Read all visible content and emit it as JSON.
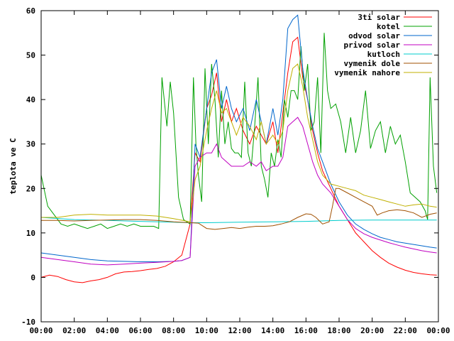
{
  "chart_data": {
    "type": "line",
    "title": "",
    "xlabel": "",
    "ylabel": "teplota ve C",
    "ylim": [
      -10,
      60
    ],
    "xlim_hours": [
      0,
      24
    ],
    "x_tick_labels": [
      "00:00",
      "02:00",
      "04:00",
      "06:00",
      "08:00",
      "10:00",
      "12:00",
      "14:00",
      "16:00",
      "18:00",
      "20:00",
      "22:00",
      "00:00"
    ],
    "y_tick_labels": [
      "-10",
      "0",
      "10",
      "20",
      "30",
      "40",
      "50",
      "60"
    ],
    "grid": false,
    "legend_position": "top-right",
    "series": [
      {
        "name": "3ti solar",
        "color": "#ff0000",
        "x": [
          0,
          0.5,
          1,
          1.5,
          2,
          2.5,
          3,
          3.5,
          4,
          4.5,
          5,
          5.5,
          6,
          6.5,
          7,
          7.5,
          8,
          8.5,
          9,
          9.3,
          9.6,
          10,
          10.3,
          10.6,
          10.9,
          11.2,
          11.5,
          11.8,
          12.2,
          12.6,
          13,
          13.3,
          13.6,
          14,
          14.3,
          14.6,
          14.9,
          15.2,
          15.5,
          15.8,
          16.1,
          16.4,
          16.7,
          17,
          17.5,
          18,
          18.5,
          19,
          19.5,
          20,
          20.5,
          21,
          21.5,
          22,
          22.5,
          23,
          23.5,
          23.9
        ],
        "y": [
          0,
          0.5,
          0.2,
          -0.5,
          -1,
          -1.2,
          -0.8,
          -0.5,
          0,
          0.8,
          1.2,
          1.3,
          1.5,
          1.8,
          2,
          2.5,
          3.5,
          5,
          12,
          28,
          26,
          38,
          41,
          46,
          35,
          40,
          35,
          38,
          33,
          30,
          34,
          32,
          30,
          35,
          28,
          37,
          46,
          53,
          54,
          45,
          40,
          33,
          28,
          24,
          20,
          16,
          13,
          10,
          8,
          6,
          4.5,
          3.2,
          2.3,
          1.6,
          1.1,
          0.8,
          0.6,
          0.5
        ]
      },
      {
        "name": "kotel",
        "color": "#00a000",
        "x": [
          0,
          0.4,
          0.8,
          1.2,
          1.6,
          2,
          2.4,
          2.8,
          3.2,
          3.6,
          4,
          4.4,
          4.8,
          5.2,
          5.6,
          6,
          6.4,
          6.8,
          7.1,
          7.3,
          7.6,
          7.8,
          8.0,
          8.3,
          8.6,
          9.0,
          9.2,
          9.35,
          9.5,
          9.7,
          9.9,
          10.1,
          10.3,
          10.5,
          10.7,
          10.9,
          11.1,
          11.3,
          11.5,
          11.7,
          11.9,
          12.1,
          12.3,
          12.5,
          12.7,
          12.9,
          13.1,
          13.3,
          13.5,
          13.7,
          13.9,
          14.1,
          14.3,
          14.5,
          14.7,
          14.9,
          15.1,
          15.3,
          15.5,
          15.7,
          15.9,
          16.1,
          16.3,
          16.5,
          16.7,
          16.9,
          17.1,
          17.3,
          17.5,
          17.8,
          18.1,
          18.4,
          18.7,
          19.0,
          19.3,
          19.6,
          19.9,
          20.2,
          20.5,
          20.8,
          21.1,
          21.4,
          21.7,
          22.0,
          22.3,
          22.6,
          22.9,
          23.2,
          23.35,
          23.5,
          23.7,
          23.9
        ],
        "y": [
          23,
          16,
          14,
          12,
          11.5,
          12,
          11.5,
          11,
          11.5,
          12,
          11,
          11.5,
          12,
          11.5,
          12,
          11.5,
          11.5,
          11.5,
          11,
          45,
          34,
          44,
          37,
          18,
          13,
          12,
          45,
          30,
          23,
          17,
          47,
          30,
          48,
          40,
          27,
          42,
          30,
          35,
          29,
          28,
          28,
          27,
          44,
          28,
          25,
          34,
          45,
          25,
          22,
          18,
          28,
          25,
          31,
          27,
          40,
          36,
          42,
          42,
          40,
          52,
          42,
          48,
          33,
          35,
          45,
          28,
          55,
          42,
          38,
          39,
          35,
          28,
          36,
          28,
          33,
          42,
          29,
          33,
          35,
          28,
          34,
          30,
          32,
          26,
          19,
          18,
          17,
          15,
          13,
          45,
          25,
          19
        ]
      },
      {
        "name": "odvod solar",
        "color": "#0066cc",
        "x": [
          0,
          1,
          2,
          3,
          4,
          5,
          6,
          7,
          8,
          8.5,
          9,
          9.3,
          9.6,
          10,
          10.3,
          10.6,
          10.9,
          11.2,
          11.5,
          11.8,
          12.2,
          12.6,
          13,
          13.3,
          13.6,
          14,
          14.3,
          14.6,
          14.9,
          15.2,
          15.5,
          15.8,
          16.1,
          16.4,
          16.7,
          17,
          17.5,
          18,
          18.5,
          19,
          19.5,
          20,
          20.5,
          21,
          21.5,
          22,
          22.5,
          23,
          23.5,
          23.9
        ],
        "y": [
          5.5,
          5,
          4.5,
          4,
          3.7,
          3.6,
          3.5,
          3.5,
          3.6,
          3.8,
          4.5,
          30,
          27,
          38,
          46,
          49,
          38,
          43,
          38,
          35,
          38,
          33,
          40,
          35,
          30,
          38,
          32,
          40,
          56,
          58,
          59,
          47,
          40,
          34,
          29,
          26,
          21,
          17,
          14,
          12,
          10.8,
          9.8,
          9,
          8.5,
          8,
          7.7,
          7.4,
          7.1,
          6.8,
          6.6
        ]
      },
      {
        "name": "privod solar",
        "color": "#c000c0",
        "x": [
          0,
          1,
          2,
          3,
          4,
          5,
          6,
          7,
          8,
          8.5,
          9,
          9.3,
          9.6,
          10,
          10.3,
          10.6,
          10.9,
          11.2,
          11.5,
          11.8,
          12.2,
          12.6,
          13,
          13.3,
          13.6,
          14,
          14.3,
          14.6,
          14.9,
          15.2,
          15.5,
          15.8,
          16.1,
          16.4,
          16.7,
          17,
          17.5,
          18,
          18.5,
          19,
          19.5,
          20,
          20.5,
          21,
          21.5,
          22,
          22.5,
          23,
          23.5,
          23.9
        ],
        "y": [
          4.5,
          4,
          3.5,
          3,
          2.8,
          3,
          3.2,
          3.4,
          3.6,
          3.8,
          4.5,
          25,
          27,
          28,
          28,
          30,
          27,
          26,
          25,
          25,
          25,
          26,
          25,
          26,
          24,
          25,
          25,
          27,
          34,
          35,
          36,
          34,
          30,
          26,
          23,
          21,
          19,
          16,
          13,
          11,
          9.8,
          9,
          8.4,
          7.8,
          7.3,
          6.8,
          6.4,
          6,
          5.7,
          5.5
        ]
      },
      {
        "name": "kutloch",
        "color": "#00cccc",
        "x": [
          0,
          2,
          4,
          6,
          8,
          9,
          10,
          12,
          14,
          16,
          18,
          20,
          22,
          23.9
        ],
        "y": [
          13.5,
          13,
          12.8,
          12.6,
          12.4,
          12.3,
          12.3,
          12.4,
          12.5,
          12.6,
          12.8,
          12.9,
          12.9,
          12.9
        ]
      },
      {
        "name": "vymenik dole",
        "color": "#a05000",
        "x": [
          0,
          1,
          2,
          3,
          4,
          5,
          6,
          7,
          8,
          9,
          9.5,
          10,
          10.5,
          11,
          11.5,
          12,
          12.5,
          13,
          13.5,
          14,
          14.5,
          15,
          15.5,
          16,
          16.3,
          16.6,
          17,
          17.4,
          17.6,
          17.8,
          18,
          18.5,
          19,
          19.5,
          20,
          20.3,
          20.6,
          21,
          21.5,
          22,
          22.5,
          23,
          23.5,
          23.9
        ],
        "y": [
          12.8,
          12.8,
          12.7,
          12.8,
          12.9,
          13,
          13,
          12.8,
          12.5,
          12.3,
          12.2,
          11,
          10.8,
          11,
          11.2,
          11,
          11.3,
          11.5,
          11.5,
          11.6,
          12,
          12.5,
          13.5,
          14.3,
          14.2,
          13.5,
          12,
          12.5,
          16,
          20,
          20,
          19,
          18,
          17,
          16,
          14,
          14.5,
          15,
          15.2,
          15,
          14.5,
          13.5,
          14.2,
          14.5
        ]
      },
      {
        "name": "vymenik nahore",
        "color": "#c0b000",
        "x": [
          0,
          1,
          2,
          3,
          4,
          5,
          6,
          7,
          8,
          9,
          9.3,
          9.6,
          10,
          10.3,
          10.6,
          10.9,
          11.2,
          11.5,
          11.8,
          12.2,
          12.6,
          13,
          13.3,
          13.6,
          14,
          14.3,
          14.6,
          14.9,
          15.2,
          15.5,
          15.8,
          16.1,
          16.4,
          16.7,
          17,
          17.5,
          18,
          18.5,
          19,
          19.5,
          20,
          20.5,
          21,
          21.5,
          22,
          22.5,
          23,
          23.5,
          23.9
        ],
        "y": [
          13.5,
          13.5,
          14,
          14.2,
          14,
          14,
          14,
          13.8,
          13.2,
          12.5,
          22,
          25,
          33,
          38,
          42,
          37,
          38,
          35,
          32,
          36,
          34,
          31,
          35,
          30,
          32,
          30,
          33,
          42,
          47,
          48,
          43,
          36,
          31,
          26,
          23,
          21,
          20.5,
          20,
          19.5,
          18.5,
          18,
          17.5,
          17,
          16.5,
          16,
          16.3,
          16.5,
          16,
          15.8
        ]
      }
    ]
  }
}
